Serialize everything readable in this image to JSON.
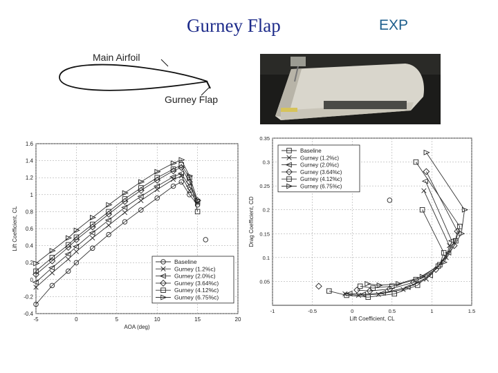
{
  "title": "Gurney Flap",
  "exp_label": "EXP",
  "airfoil_sketch": {
    "main_label": "Main Airfoil",
    "flap_label": "Gurney Flap"
  },
  "photo": {
    "description": "Airfoil model with Gurney flap"
  },
  "colors": {
    "title": "#1d2b8a",
    "exp": "#1d5e8c",
    "line": "#333333"
  },
  "chart_data": [
    {
      "type": "line",
      "title": "",
      "xlabel": "AOA (deg)",
      "ylabel": "Lift Coefficient, CL",
      "xlim": [
        -5,
        20
      ],
      "ylim": [
        -0.4,
        1.6
      ],
      "xticks": [
        -5,
        0,
        5,
        10,
        15,
        20
      ],
      "xtick_labels": [
        "-5",
        "0",
        "5",
        "10",
        "15",
        "20"
      ],
      "yticks": [
        -0.4,
        -0.2,
        0,
        0.2,
        0.4,
        0.6,
        0.8,
        1,
        1.2,
        1.4,
        1.6
      ],
      "ytick_labels": [
        "-0.4",
        "-0.2",
        "0",
        "0.2",
        "0.4",
        "0.6",
        "0.8",
        "1",
        "1.2",
        "1.4",
        "1.6"
      ],
      "grid": true,
      "legend_position": "bottom-right",
      "series": [
        {
          "name": "Baseline",
          "marker": "circle",
          "x": [
            -5,
            -3,
            -1,
            0,
            2,
            4,
            6,
            8,
            10,
            12,
            13,
            14,
            15
          ],
          "y": [
            -0.29,
            -0.07,
            0.1,
            0.2,
            0.37,
            0.53,
            0.68,
            0.82,
            0.96,
            1.1,
            1.15,
            1.0,
            0.88
          ]
        },
        {
          "name": "Gurney (1.2%c)",
          "marker": "x",
          "x": [
            -5,
            -3,
            -1,
            0,
            2,
            4,
            6,
            8,
            10,
            12,
            13,
            14,
            15
          ],
          "y": [
            -0.09,
            0.08,
            0.24,
            0.33,
            0.49,
            0.64,
            0.79,
            0.93,
            1.06,
            1.18,
            1.22,
            1.05,
            0.9
          ]
        },
        {
          "name": "Gurney (2.0%c)",
          "marker": "triangle-left",
          "x": [
            -5,
            -3,
            -1,
            0,
            2,
            4,
            6,
            8,
            10,
            12,
            13,
            14,
            15
          ],
          "y": [
            -0.03,
            0.14,
            0.3,
            0.39,
            0.55,
            0.7,
            0.85,
            0.98,
            1.1,
            1.21,
            1.25,
            1.1,
            0.92
          ]
        },
        {
          "name": "Gurney (3.64%c)",
          "marker": "diamond",
          "x": [
            -5,
            -3,
            -1,
            0,
            2,
            4,
            6,
            8,
            10,
            12,
            13,
            14,
            15
          ],
          "y": [
            0.06,
            0.22,
            0.38,
            0.47,
            0.62,
            0.77,
            0.92,
            1.05,
            1.17,
            1.28,
            1.32,
            1.15,
            0.93
          ]
        },
        {
          "name": "Gurney (4.12%c)",
          "marker": "square",
          "x": [
            -5,
            -3,
            -1,
            0,
            2,
            4,
            6,
            8,
            10,
            12,
            13,
            14,
            15
          ],
          "y": [
            0.1,
            0.26,
            0.41,
            0.5,
            0.65,
            0.8,
            0.95,
            1.08,
            1.2,
            1.3,
            1.35,
            1.2,
            0.8
          ]
        },
        {
          "name": "Gurney (6.75%c)",
          "marker": "triangle-right",
          "x": [
            -5,
            -3,
            -1,
            0,
            2,
            4,
            6,
            8,
            10,
            12,
            13,
            14,
            15
          ],
          "y": [
            0.19,
            0.34,
            0.49,
            0.58,
            0.73,
            0.88,
            1.02,
            1.15,
            1.27,
            1.37,
            1.41,
            1.22,
            0.93
          ]
        }
      ],
      "extra_points": [
        {
          "x": 16,
          "y": 0.47,
          "marker": "circle"
        }
      ]
    },
    {
      "type": "line",
      "title": "",
      "xlabel": "Lift Coefficient, CL",
      "ylabel": "Drag Coefficient, CD",
      "xlim": [
        -1,
        1.5
      ],
      "ylim": [
        0,
        0.35
      ],
      "xticks": [
        -1,
        -0.5,
        0,
        0.5,
        1,
        1.5
      ],
      "xtick_labels": [
        "-1",
        "-0.5",
        "0",
        "0.5",
        "1",
        "1.5"
      ],
      "yticks": [
        0.05,
        0.1,
        0.15,
        0.2,
        0.25,
        0.3,
        0.35
      ],
      "ytick_labels": [
        "0.05",
        "0.1",
        "0.15",
        "0.2",
        "0.25",
        "0.3",
        "0.35"
      ],
      "grid": true,
      "legend_position": "top-left",
      "series": [
        {
          "name": "Baseline",
          "marker": "square",
          "x": [
            -0.29,
            -0.07,
            0.2,
            0.53,
            0.82,
            1.1,
            1.15,
            0.88
          ],
          "y": [
            0.03,
            0.021,
            0.017,
            0.024,
            0.042,
            0.085,
            0.11,
            0.2
          ]
        },
        {
          "name": "Gurney (1.2%c)",
          "marker": "x",
          "x": [
            -0.09,
            0.08,
            0.33,
            0.64,
            0.93,
            1.18,
            1.22,
            0.9
          ],
          "y": [
            0.024,
            0.021,
            0.023,
            0.033,
            0.055,
            0.1,
            0.125,
            0.24
          ]
        },
        {
          "name": "Gurney (2.0%c)",
          "marker": "triangle-left",
          "x": [
            -0.03,
            0.14,
            0.39,
            0.7,
            0.98,
            1.21,
            1.25,
            0.92
          ],
          "y": [
            0.025,
            0.023,
            0.026,
            0.038,
            0.062,
            0.11,
            0.135,
            0.26
          ]
        },
        {
          "name": "Gurney (3.64%c)",
          "marker": "diamond",
          "x": [
            0.06,
            0.22,
            0.47,
            0.77,
            1.05,
            1.28,
            1.32,
            0.93
          ],
          "y": [
            0.032,
            0.03,
            0.034,
            0.048,
            0.075,
            0.125,
            0.155,
            0.28
          ]
        },
        {
          "name": "Gurney (4.12%c)",
          "marker": "square",
          "x": [
            0.1,
            0.26,
            0.5,
            0.8,
            1.08,
            1.3,
            1.35,
            0.8
          ],
          "y": [
            0.04,
            0.036,
            0.04,
            0.054,
            0.082,
            0.135,
            0.165,
            0.3
          ]
        },
        {
          "name": "Gurney (6.75%c)",
          "marker": "triangle-right",
          "x": [
            0.19,
            0.34,
            0.58,
            0.88,
            1.15,
            1.37,
            1.41,
            0.93
          ],
          "y": [
            0.045,
            0.042,
            0.045,
            0.06,
            0.09,
            0.15,
            0.2,
            0.32
          ]
        }
      ],
      "extra_points": [
        {
          "x": -0.42,
          "y": 0.04,
          "marker": "diamond"
        },
        {
          "x": 0.47,
          "y": 0.22,
          "marker": "circle"
        }
      ]
    }
  ]
}
